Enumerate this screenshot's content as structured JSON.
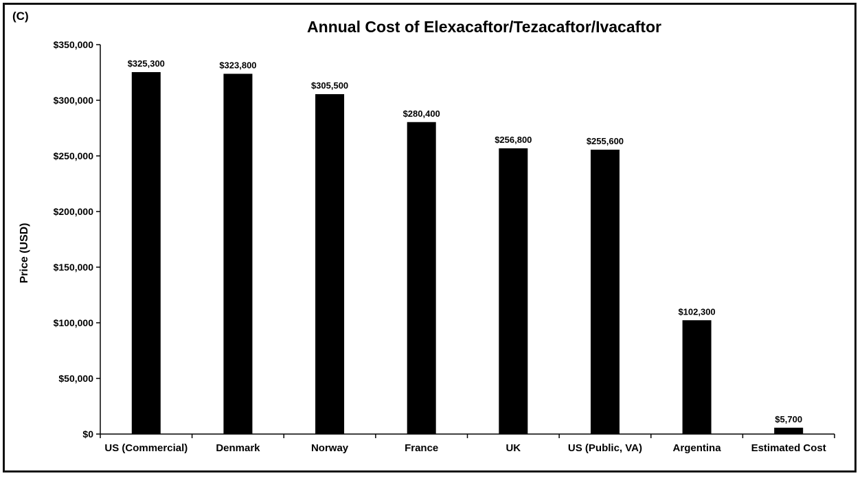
{
  "panel_label": "(C)",
  "chart_data": {
    "type": "bar",
    "title": "Annual Cost of Elexacaftor/Tezacaftor/Ivacaftor",
    "xlabel": "",
    "ylabel": "Price (USD)",
    "ylim": [
      0,
      350000
    ],
    "yticks": [
      0,
      50000,
      100000,
      150000,
      200000,
      250000,
      300000,
      350000
    ],
    "ytick_labels": [
      "$0",
      "$50,000",
      "$100,000",
      "$150,000",
      "$200,000",
      "$250,000",
      "$300,000",
      "$350,000"
    ],
    "categories": [
      "US (Commercial)",
      "Denmark",
      "Norway",
      "France",
      "UK",
      "US (Public, VA)",
      "Argentina",
      "Estimated Cost"
    ],
    "values": [
      325300,
      323800,
      305500,
      280400,
      256800,
      255600,
      102300,
      5700
    ],
    "data_labels": [
      "$325,300",
      "$323,800",
      "$305,500",
      "$280,400",
      "$256,800",
      "$255,600",
      "$102,300",
      "$5,700"
    ],
    "bar_color": "#000000",
    "grid": false,
    "legend": "none"
  }
}
